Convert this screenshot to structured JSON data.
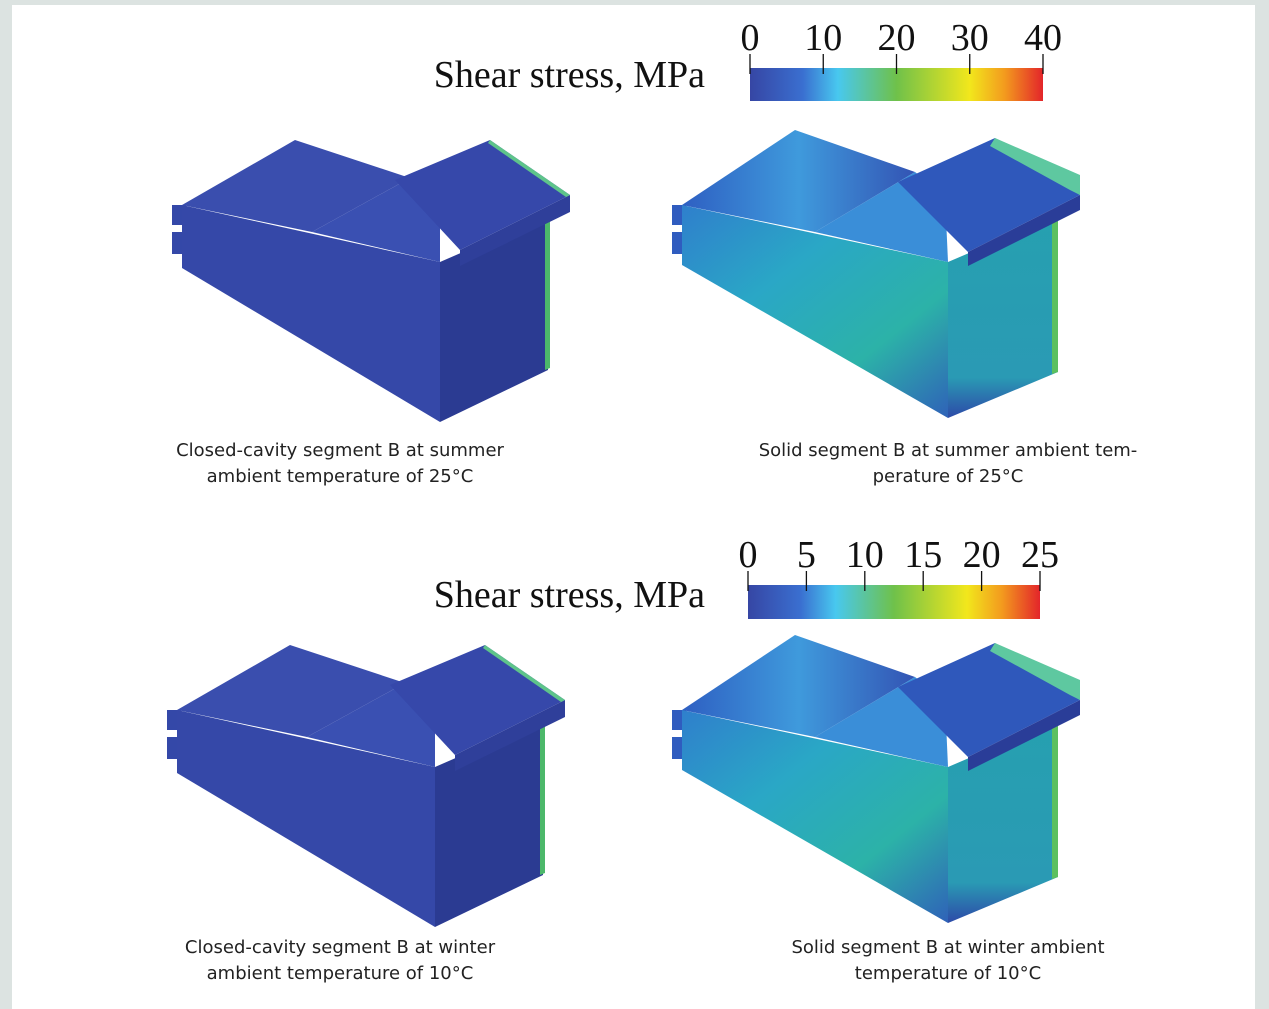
{
  "colorbars": [
    {
      "title": "Shear stress, MPa",
      "ticks": [
        0,
        10,
        20,
        30,
        40
      ]
    },
    {
      "title": "Shear stress, MPa",
      "ticks": [
        0,
        5,
        10,
        15,
        20,
        25
      ]
    }
  ],
  "captions": [
    {
      "lines": [
        "Closed-cavity segment B at summer",
        "ambient temperature of 25°C"
      ]
    },
    {
      "lines": [
        "Solid segment B at summer ambient tem-",
        "perature of 25°C"
      ]
    },
    {
      "lines": [
        "Closed-cavity segment B at winter",
        "ambient temperature of 10°C"
      ]
    },
    {
      "lines": [
        "Solid segment B at winter ambient",
        "temperature of 10°C"
      ]
    }
  ]
}
